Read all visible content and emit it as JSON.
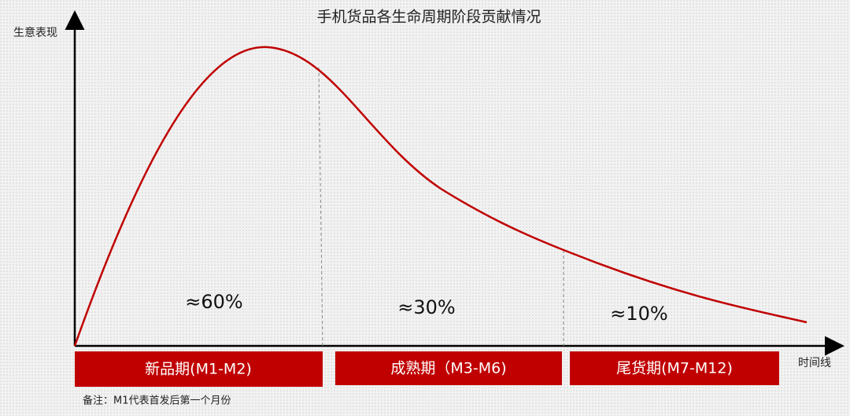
{
  "title": "手机货品各生命周期阶段贡献情况",
  "y_label": "生意表现",
  "x_label": "时间线",
  "stages": [
    {
      "label": "新品期(M1-M2)",
      "share": "≈60%"
    },
    {
      "label": "成熟期（M3-M6)",
      "share": "≈30%"
    },
    {
      "label": "尾货期(M7-M12)",
      "share": "≈10%"
    }
  ],
  "note": "备注：M1代表首发后第一个月份"
}
